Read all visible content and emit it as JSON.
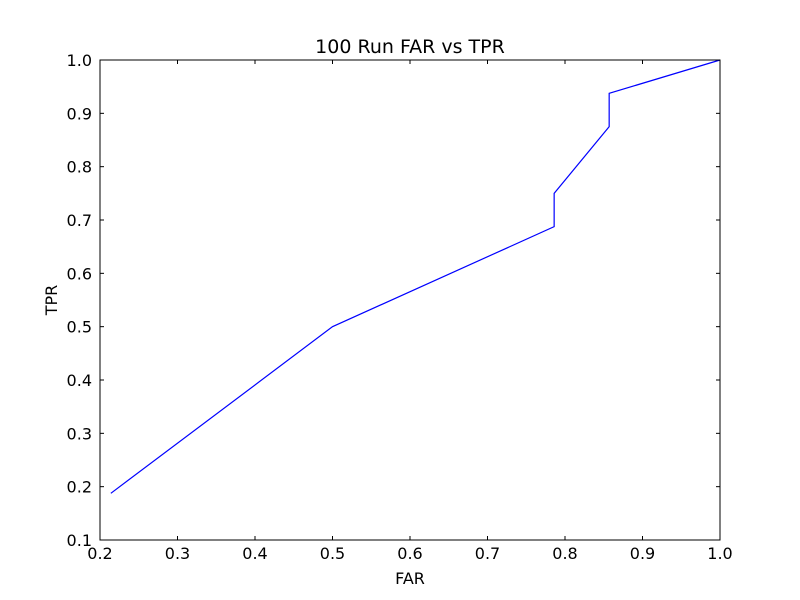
{
  "chart_data": {
    "type": "line",
    "title": "100 Run FAR vs TPR",
    "xlabel": "FAR",
    "ylabel": "TPR",
    "xlim": [
      0.2,
      1.0
    ],
    "ylim": [
      0.1,
      1.0
    ],
    "xticks": [
      "0.2",
      "0.3",
      "0.4",
      "0.5",
      "0.6",
      "0.7",
      "0.8",
      "0.9",
      "1.0"
    ],
    "yticks": [
      "0.1",
      "0.2",
      "0.3",
      "0.4",
      "0.5",
      "0.6",
      "0.7",
      "0.8",
      "0.9",
      "1.0"
    ],
    "grid": false,
    "series": [
      {
        "color": "#0000ff",
        "x": [
          0.214,
          0.5,
          0.786,
          0.786,
          0.857,
          0.857,
          1.0
        ],
        "y": [
          0.1875,
          0.5,
          0.6875,
          0.75,
          0.875,
          0.9375,
          1.0
        ]
      }
    ]
  }
}
